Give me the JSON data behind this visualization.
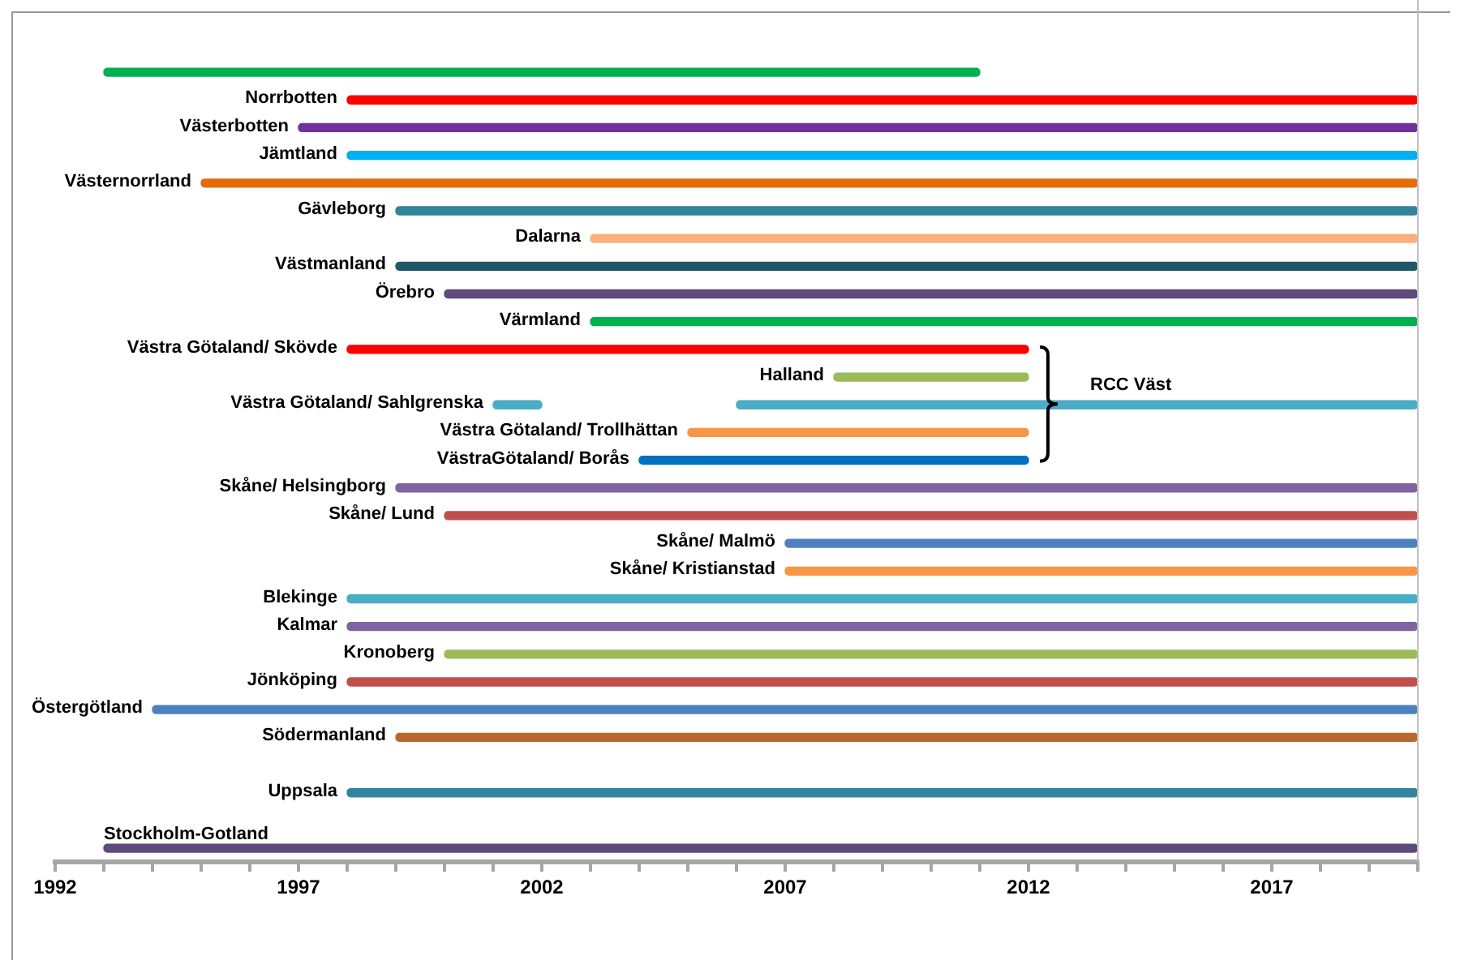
{
  "chart_data": {
    "type": "bar",
    "orientation": "horizontal",
    "categories": [
      null,
      "Norrbotten",
      "Västerbotten",
      "Jämtland",
      "Västernorrland",
      "Gävleborg",
      "Dalarna",
      "Västmanland",
      "Örebro",
      "Värmland",
      "Västra Götaland/ Skövde",
      "Halland",
      "Västra Götaland/ Sahlgrenska",
      "Västra Götaland/ Trollhättan",
      "VästraGötaland/ Borås",
      "Skåne/ Helsingborg",
      "Skåne/ Lund",
      "Skåne/ Malmö",
      "Skåne/ Kristianstad",
      "Blekinge",
      "Kalmar",
      "Kronoberg",
      "Jönköping",
      "Östergötland",
      "Södermanland",
      null,
      "Uppsala",
      null,
      "Stockholm-Gotland"
    ],
    "series": [
      {
        "base": [
          1993,
          1998,
          1997,
          1998,
          1995,
          1999,
          2003,
          1999,
          2000,
          2003,
          1998,
          2008,
          2001,
          2005,
          2004,
          1999,
          2000,
          2007,
          2007,
          1998,
          1998,
          2000,
          1998,
          1994,
          1999,
          null,
          1998,
          null,
          1993
        ],
        "values": [
          18,
          22,
          23,
          22,
          25,
          21,
          17,
          21,
          20,
          17,
          14,
          4,
          1,
          7,
          8,
          21,
          20,
          13,
          13,
          22,
          22,
          20,
          22,
          26,
          21,
          null,
          22,
          null,
          27
        ],
        "colors": [
          "#00b050",
          "#ff0000",
          "#7030a0",
          "#00b0f0",
          "#e36c09",
          "#31849b",
          "#fab07c",
          "#215868",
          "#604a7b",
          "#00b050",
          "#ff0000",
          "#9bbb59",
          "#4bacc6",
          "#f79646",
          "#0070c0",
          "#8064a2",
          "#c0504d",
          "#4f81bd",
          "#f79646",
          "#4bacc6",
          "#8064a2",
          "#9bbb59",
          "#c0504d",
          "#4f81bd",
          "#b8682f",
          null,
          "#31849b",
          null,
          "#604a7b"
        ]
      },
      {
        "base": [
          null,
          null,
          null,
          null,
          null,
          null,
          null,
          null,
          null,
          null,
          null,
          null,
          2006,
          null,
          null,
          null,
          null,
          null,
          null,
          null,
          null,
          null,
          null,
          null,
          null,
          null,
          null,
          null,
          null
        ],
        "values": [
          null,
          null,
          null,
          null,
          null,
          null,
          null,
          null,
          null,
          null,
          null,
          null,
          14,
          null,
          null,
          null,
          null,
          null,
          null,
          null,
          null,
          null,
          null,
          null,
          null,
          null,
          null,
          null,
          null
        ],
        "color": "#4bacc6"
      }
    ],
    "xlim": [
      1992,
      2020
    ],
    "xticks": [
      1992,
      {
        "value": 1993,
        "label": null
      },
      {
        "value": 1994,
        "label": null
      },
      {
        "value": 1995,
        "label": null
      },
      {
        "value": 1996,
        "label": null
      },
      1997,
      {
        "value": 1998,
        "label": null
      },
      {
        "value": 1999,
        "label": null
      },
      {
        "value": 2000,
        "label": null
      },
      {
        "value": 2001,
        "label": null
      },
      2002,
      {
        "value": 2003,
        "label": null
      },
      {
        "value": 2004,
        "label": null
      },
      {
        "value": 2005,
        "label": null
      },
      {
        "value": 2006,
        "label": null
      },
      2007,
      {
        "value": 2008,
        "label": null
      },
      {
        "value": 2009,
        "label": null
      },
      {
        "value": 2010,
        "label": null
      },
      {
        "value": 2011,
        "label": null
      },
      2012,
      {
        "value": 2013,
        "label": null
      },
      {
        "value": 2014,
        "label": null
      },
      {
        "value": 2015,
        "label": null
      },
      {
        "value": 2016,
        "label": null
      },
      2017,
      {
        "value": 2018,
        "label": null
      },
      {
        "value": 2019,
        "label": null
      },
      {
        "value": 2020,
        "label": null
      }
    ],
    "grid": false,
    "legend": false,
    "annotations": [
      "RCC Väst"
    ]
  }
}
